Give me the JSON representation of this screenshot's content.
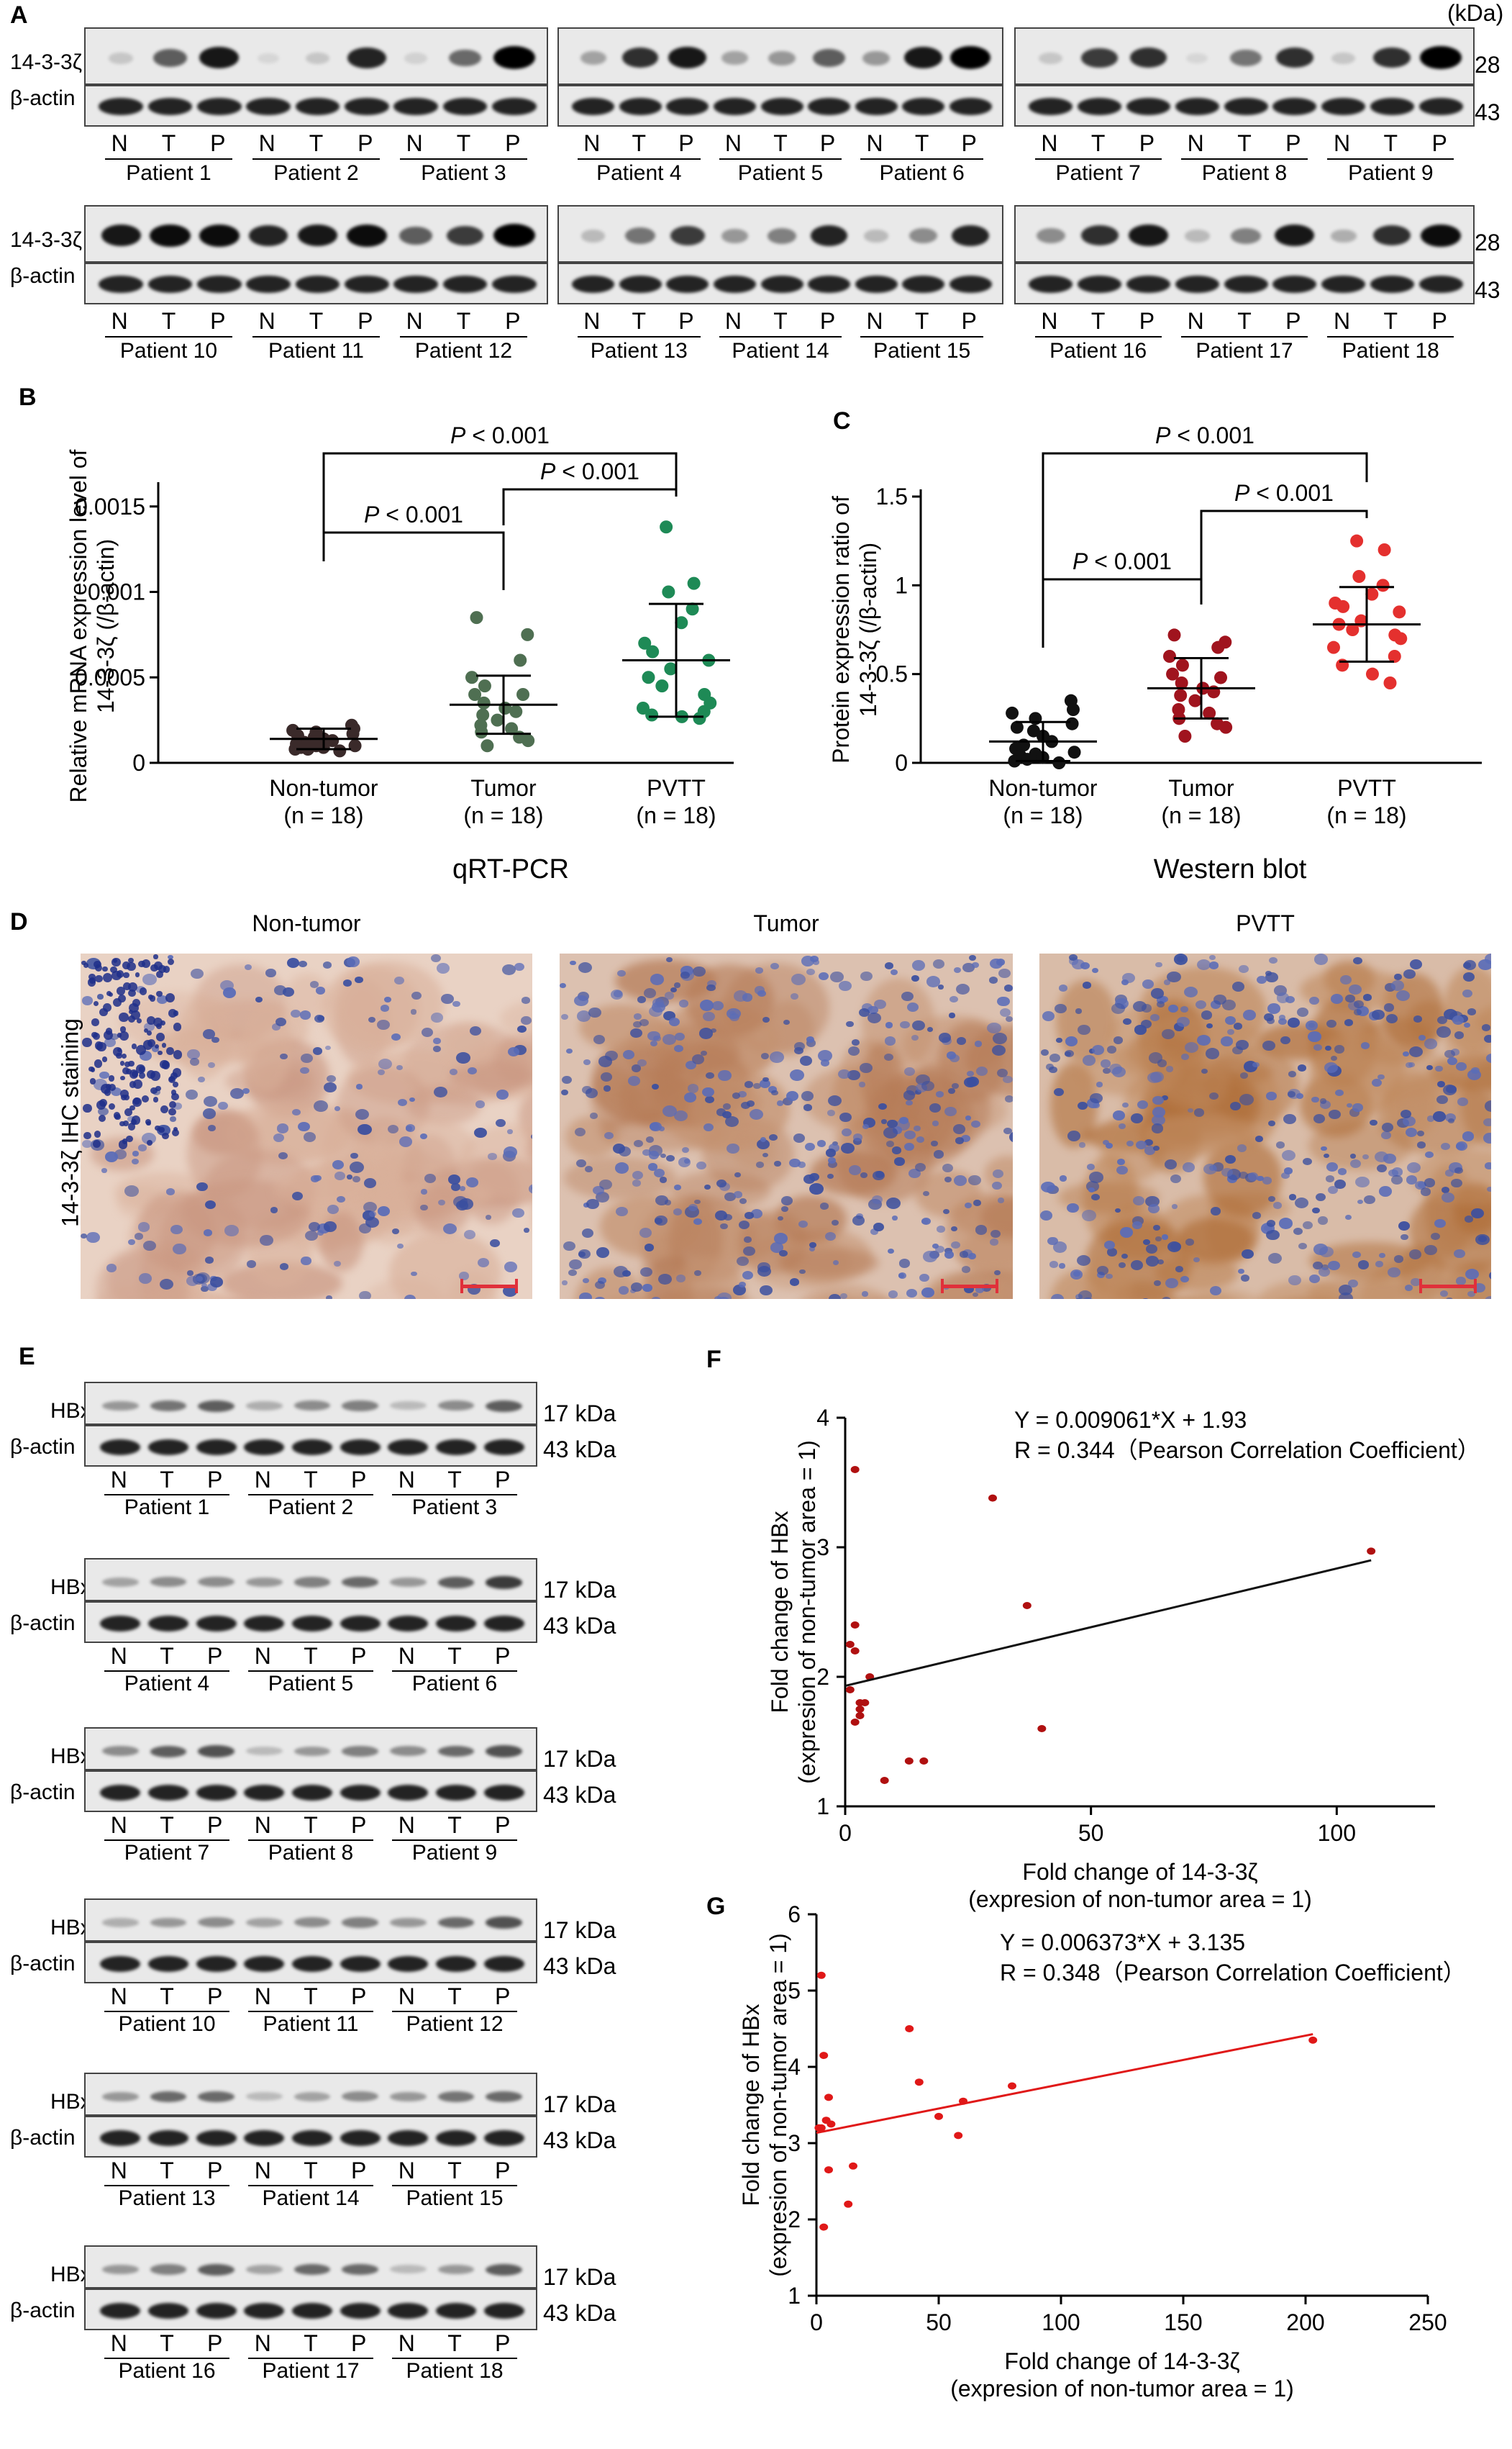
{
  "panels": {
    "A": "A",
    "B": "B",
    "C": "C",
    "D": "D",
    "E": "E",
    "F": "F",
    "G": "G"
  },
  "panelA": {
    "unit_label": "(kDa)",
    "row_labels": [
      "14-3-3ζ",
      "β-actin"
    ],
    "kda": [
      "28",
      "43"
    ],
    "lane_letters": [
      "N",
      "T",
      "P"
    ],
    "patients": [
      "Patient 1",
      "Patient 2",
      "Patient 3",
      "Patient  4",
      "Patient 5",
      "Patient 6",
      "Patient  7",
      "Patient 8",
      "Patient  9",
      "Patient 10",
      "Patient  11",
      "Patient  12",
      "Patient 13",
      "Patient 14",
      "Patient 15",
      "Patient 16",
      "Patient 17",
      "Patient 18"
    ]
  },
  "panelB": {
    "ylabel_line1": "Relative mRNA expression level of",
    "ylabel_line2": "14-3-3ζ (/β-actin)",
    "xlabel": "qRT-PCR",
    "groups": [
      {
        "name": "Non-tumor",
        "n": "(n = 18)",
        "color": "#3a2a2a"
      },
      {
        "name": "Tumor",
        "n": "(n = 18)",
        "color": "#4f6f52"
      },
      {
        "name": "PVTT",
        "n": "(n = 18)",
        "color": "#1e8a56"
      }
    ],
    "yticks": [
      "0",
      "0.0005",
      "0.001",
      "0.0015"
    ],
    "pvalues": [
      "P < 0.001",
      "P < 0.001",
      "P < 0.001"
    ]
  },
  "panelC": {
    "ylabel_line1": "Protein expression ratio of",
    "ylabel_line2": "14-3-3ζ (/β-actin)",
    "xlabel": "Western blot",
    "groups": [
      {
        "name": "Non-tumor",
        "n": "(n = 18)",
        "color": "#111111"
      },
      {
        "name": "Tumor",
        "n": "(n = 18)",
        "color": "#a0141e"
      },
      {
        "name": "PVTT",
        "n": "(n = 18)",
        "color": "#e4302e"
      }
    ],
    "yticks": [
      "0",
      "0.5",
      "1",
      "1.5"
    ],
    "pvalues": [
      "P < 0.001",
      "P < 0.001",
      "P < 0.001"
    ]
  },
  "panelD": {
    "titles": [
      "Non-tumor",
      "Tumor",
      "PVTT"
    ],
    "side_label": "14-3-3ζ IHC staining"
  },
  "panelE": {
    "row_labels": [
      "HBx",
      "β-actin"
    ],
    "kda": [
      "17 kDa",
      "43 kDa"
    ],
    "lane_letters": [
      "N",
      "T",
      "P"
    ],
    "patients": [
      "Patient 1",
      "Patient 2",
      "Patient 3",
      "Patient  4",
      "Patient 5",
      "Patient 6",
      "Patient 7",
      "Patient 8",
      "Patient 9",
      "Patient  10",
      "Patient 11",
      "Patient 12",
      "Patient 13",
      "Patient 14",
      "Patient 15",
      "Patient 16",
      "Patient 17",
      "Patient 18"
    ]
  },
  "chart_data": [
    {
      "type": "scatter",
      "id": "F",
      "equation": "Y = 0.009061*X + 1.93",
      "correlation": "R = 0.344（Pearson Correlation Coefficient）",
      "xlabel_line1": "Fold change of 14-3-3ζ",
      "xlabel_line2": "(expresion of non-tumor area = 1)",
      "ylabel_line1": "Fold change of HBx",
      "ylabel_line2": "(expresion of non-tumor area = 1)",
      "xlim": [
        0,
        120
      ],
      "ylim": [
        1,
        4
      ],
      "xticks": [
        0,
        50,
        100
      ],
      "yticks": [
        1,
        2,
        3,
        4
      ],
      "point_color": "#b01010",
      "line_color": "#111111",
      "fit": {
        "slope": 0.009061,
        "intercept": 1.93,
        "x_range": [
          0,
          107
        ]
      },
      "x": [
        2,
        2,
        1,
        2,
        1,
        3,
        3,
        2,
        5,
        4,
        3,
        8,
        13,
        16,
        30,
        37,
        40,
        107
      ],
      "y": [
        3.6,
        2.4,
        2.25,
        2.2,
        1.9,
        1.8,
        1.75,
        1.65,
        2.0,
        1.8,
        1.7,
        1.2,
        1.35,
        1.35,
        3.38,
        2.55,
        1.6,
        2.97
      ]
    },
    {
      "type": "scatter",
      "id": "G",
      "equation": "Y = 0.006373*X + 3.135",
      "correlation": "R = 0.348（Pearson Correlation Coefficient）",
      "xlabel_line1": "Fold change of 14-3-3ζ",
      "xlabel_line2": "(expresion of non-tumor area = 1)",
      "ylabel_line1": "Fold change of HBx",
      "ylabel_line2": "(expresion of non-tumor area = 1)",
      "xlim": [
        0,
        250
      ],
      "ylim": [
        1,
        6
      ],
      "xticks": [
        0,
        50,
        100,
        150,
        200,
        250
      ],
      "yticks": [
        1,
        2,
        3,
        4,
        5,
        6
      ],
      "point_color": "#e01818",
      "line_color": "#e01818",
      "fit": {
        "slope": 0.006373,
        "intercept": 3.135,
        "x_range": [
          0,
          203
        ]
      },
      "x": [
        2,
        3,
        1,
        2,
        5,
        4,
        6,
        5,
        3,
        13,
        15,
        38,
        42,
        50,
        58,
        60,
        80,
        203
      ],
      "y": [
        5.2,
        4.15,
        3.2,
        3.2,
        3.6,
        3.3,
        3.25,
        2.65,
        1.9,
        2.2,
        2.7,
        4.5,
        3.8,
        3.35,
        3.1,
        3.55,
        3.75,
        4.35
      ]
    },
    {
      "type": "scatter",
      "id": "B-data",
      "categories": [
        "Non-tumor",
        "Tumor",
        "PVTT"
      ],
      "ylim": [
        0,
        0.0016
      ],
      "mean": [
        0.00014,
        0.00034,
        0.0006
      ],
      "sd": [
        6e-05,
        0.00017,
        0.00033
      ],
      "values": [
        [
          0.00022,
          0.0002,
          0.00019,
          0.00018,
          0.00017,
          0.00016,
          0.00015,
          0.00014,
          0.00013,
          0.00012,
          0.00011,
          0.0001,
          0.0001,
          9e-05,
          9e-05,
          8e-05,
          8e-05,
          7e-05
        ],
        [
          0.00085,
          0.00075,
          0.0006,
          0.0005,
          0.00045,
          0.0004,
          0.0004,
          0.00035,
          0.00032,
          0.0003,
          0.00028,
          0.00025,
          0.00022,
          0.0002,
          0.00018,
          0.00015,
          0.00013,
          0.0001
        ],
        [
          0.00138,
          0.00105,
          0.001,
          0.0009,
          0.00082,
          0.0007,
          0.00065,
          0.0006,
          0.00055,
          0.0005,
          0.00045,
          0.0004,
          0.00035,
          0.00032,
          0.0003,
          0.00028,
          0.00027,
          0.00026
        ]
      ]
    },
    {
      "type": "scatter",
      "id": "C-data",
      "categories": [
        "Non-tumor",
        "Tumor",
        "PVTT"
      ],
      "ylim": [
        0,
        1.5
      ],
      "mean": [
        0.12,
        0.42,
        0.78
      ],
      "sd": [
        0.11,
        0.17,
        0.21
      ],
      "values": [
        [
          0.35,
          0.3,
          0.28,
          0.25,
          0.22,
          0.2,
          0.18,
          0.15,
          0.12,
          0.1,
          0.08,
          0.06,
          0.05,
          0.04,
          0.03,
          0.02,
          0.01,
          0.0
        ],
        [
          0.72,
          0.68,
          0.65,
          0.6,
          0.55,
          0.5,
          0.48,
          0.45,
          0.42,
          0.4,
          0.38,
          0.35,
          0.3,
          0.28,
          0.25,
          0.22,
          0.2,
          0.15
        ],
        [
          1.25,
          1.2,
          1.05,
          1.0,
          0.95,
          0.9,
          0.88,
          0.85,
          0.8,
          0.78,
          0.75,
          0.72,
          0.7,
          0.65,
          0.6,
          0.55,
          0.5,
          0.45
        ]
      ]
    }
  ]
}
